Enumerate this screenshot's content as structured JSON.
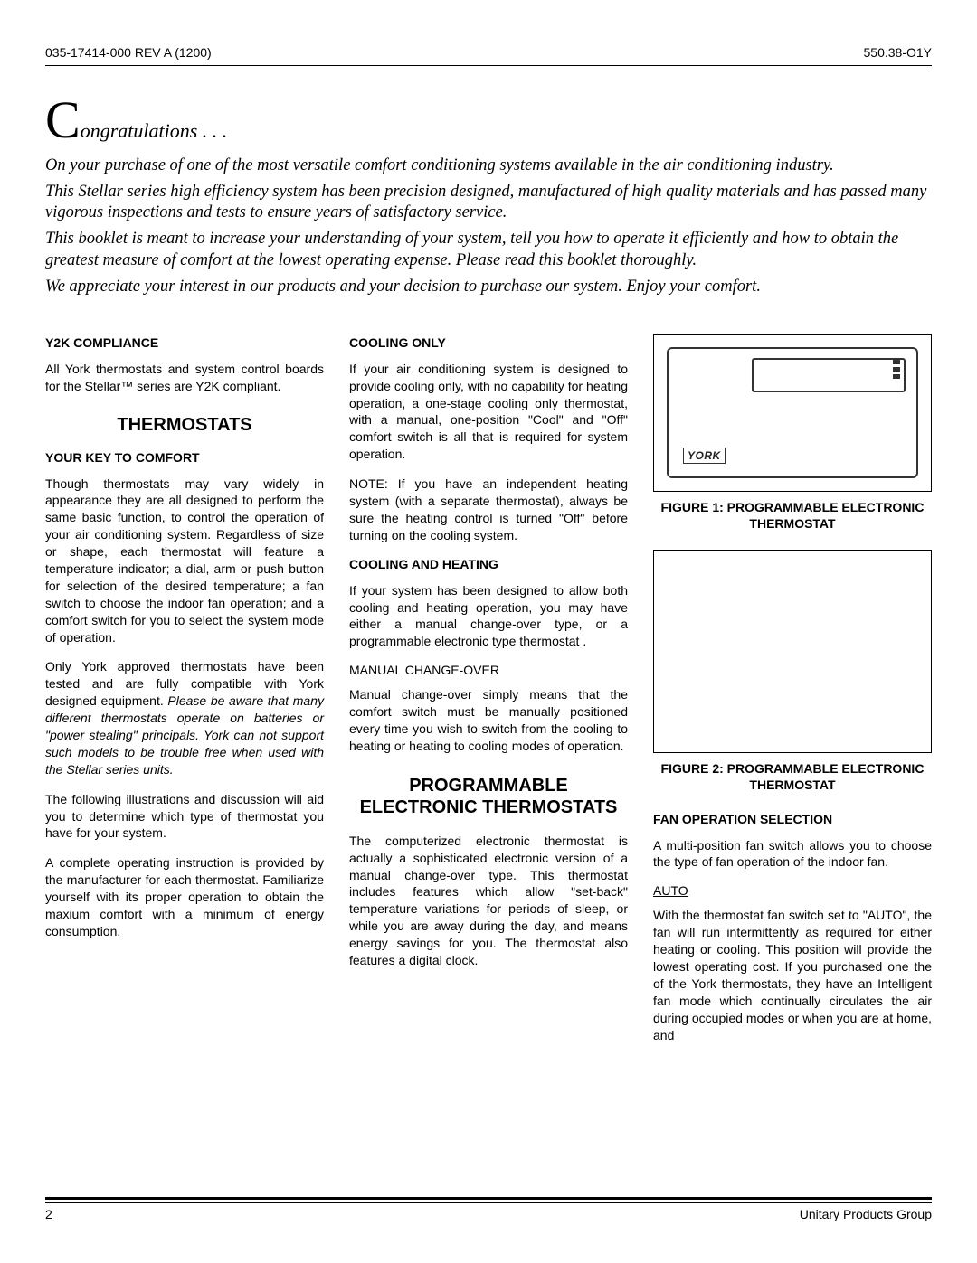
{
  "header": {
    "left": "035-17414-000 REV A (1200)",
    "right": "550.38-O1Y"
  },
  "congrats": {
    "c": "C",
    "rest": "ongratulations . . ."
  },
  "intro": {
    "p1": "On your purchase of one of the most versatile comfort conditioning systems available in the air conditioning industry.",
    "p2": "This Stellar series high efficiency system has been precision designed, manufactured of high quality materials and has passed many vigorous inspections and tests to ensure years of satisfactory service.",
    "p3": "This booklet is meant to increase your understanding of your system, tell you how to operate it efficiently and how to obtain the greatest measure of comfort at the lowest operating expense. Please read this booklet thoroughly.",
    "p4": "We appreciate your interest in our products and your decision to purchase our system. Enjoy your comfort."
  },
  "col1": {
    "h_y2k": "Y2K COMPLIANCE",
    "y2k_body": "All York thermostats and system control boards for the Stellar™ series are Y2K compliant.",
    "h_thermo": "THERMOSTATS",
    "h_key": "YOUR KEY TO COMFORT",
    "key_p1": "Though thermostats may vary widely in appearance they are all designed to perform the same basic function, to control the operation of your air conditioning system. Regardless of size or shape, each thermostat will feature a temperature indicator; a dial, arm or push button for selection of the desired temperature; a fan switch to choose the indoor fan operation; and a comfort switch for you to select the system mode of operation.",
    "key_p2a": "Only York approved thermostats have been tested and are fully compatible with York designed equipment. ",
    "key_p2b": "Please be aware that many different thermostats operate on batteries or \"power stealing\" principals. York can not support such models to be trouble free when used with the Stellar series units.",
    "key_p3": "The following illustrations and discussion will aid you to determine which type of thermostat you have for your system.",
    "key_p4": "A complete operating instruction is provided by the manufacturer for each thermostat. Familiarize yourself with its proper operation to obtain the maxium comfort with a minimum of energy consumption."
  },
  "col2": {
    "h_cool": "COOLING ONLY",
    "cool_p1": "If your air conditioning system is designed to provide cooling only, with no capability for heating operation, a one-stage cooling only thermostat, with a manual, one-position \"Cool\" and \"Off\" comfort switch is all that is required for system operation.",
    "cool_p2": "NOTE: If you have an independent heating system (with a separate thermostat), always be sure the heating control is turned \"Off\" before turning on the cooling system.",
    "h_ch": "COOLING AND HEATING",
    "ch_p1": "If your system has been designed to allow both cooling and heating operation, you may have either a manual change-over type, or a programmable electronic type thermostat .",
    "h_manual": "MANUAL CHANGE-OVER",
    "manual_p1": "Manual change-over simply means that the comfort switch must be manually positioned every time you wish to switch from the cooling to heating or heating to cooling modes of operation.",
    "h_prog": "PROGRAMMABLE ELECTRONIC THERMOSTATS",
    "prog_p1": "The computerized electronic thermostat is actually a sophisticated electronic version of a manual change-over type. This thermostat includes features which allow \"set-back\" temperature variations for periods of sleep, or while you are away during the day, and means energy savings for you. The thermostat also features a digital clock."
  },
  "col3": {
    "fig1_caption": "FIGURE 1:  PROGRAMMABLE ELECTRONIC THERMOSTAT",
    "fig2_caption": "FIGURE 2:  PROGRAMMABLE ELECTRONIC THERMOSTAT",
    "brand": "YORK",
    "h_fan": "FAN OPERATION SELECTION",
    "fan_p1": "A multi-position fan switch allows you to choose the type of fan operation of the indoor fan.",
    "h_auto": "AUTO",
    "auto_p1": "With the thermostat fan switch set to \"AUTO\", the fan will run intermittently as required for either heating or cooling. This position will provide the lowest operating cost. If you purchased one the of the York thermostats, they have an Intelligent fan mode which continually circulates the air during occupied modes or when you are at home, and"
  },
  "footer": {
    "page": "2",
    "right": "Unitary Products Group"
  }
}
